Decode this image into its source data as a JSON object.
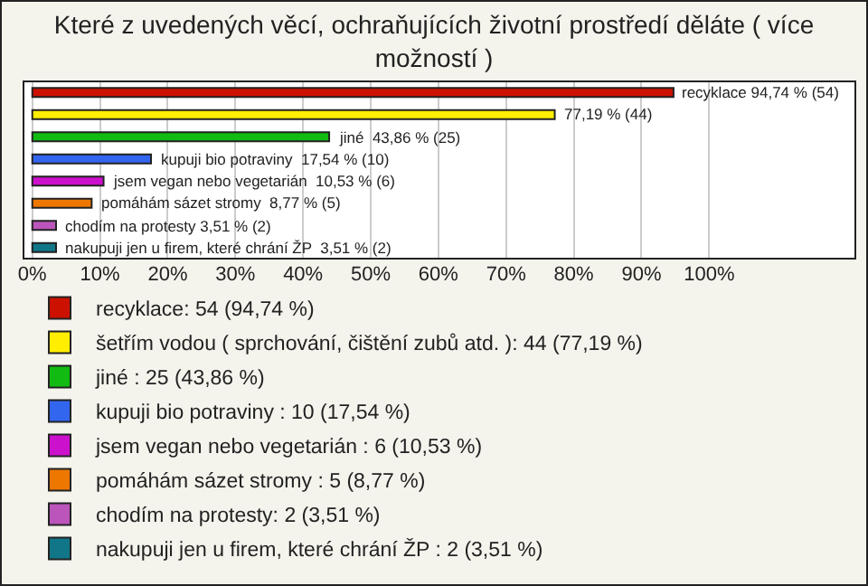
{
  "chart_data": {
    "type": "bar",
    "orientation": "horizontal",
    "title": "Které z uvedených věcí, ochraňujících životní prostředí děláte ( více možností )",
    "categories": [
      null,
      null,
      null,
      null,
      null,
      null,
      null,
      null
    ],
    "series": [
      {
        "name": "recyklace: 54 (94,74 %)",
        "color": "#cc1100",
        "values": [
          94.74,
          null,
          null,
          null,
          null,
          null,
          null,
          null
        ],
        "value_labels": [
          "recyklace 94,74 % (54)",
          null,
          null,
          null,
          null,
          null,
          null,
          null
        ]
      },
      {
        "name": "šetřím vodou ( sprchování, čištění zubů atd. ): 44 (77,19 %)",
        "color": "#ffee00",
        "values": [
          null,
          77.19,
          null,
          null,
          null,
          null,
          null,
          null
        ],
        "value_labels": [
          null,
          "77,19 % (44)",
          null,
          null,
          null,
          null,
          null,
          null
        ]
      },
      {
        "name": "jiné : 25 (43,86 %)",
        "color": "#11bb11",
        "values": [
          null,
          null,
          43.86,
          null,
          null,
          null,
          null,
          null
        ],
        "value_labels": [
          null,
          null,
          "jiné  43,86 % (25)",
          null,
          null,
          null,
          null,
          null
        ]
      },
      {
        "name": "kupuji bio potraviny : 10 (17,54 %)",
        "color": "#3366ee",
        "values": [
          null,
          null,
          null,
          17.54,
          null,
          null,
          null,
          null
        ],
        "value_labels": [
          null,
          null,
          null,
          "kupuji bio potraviny  17,54 % (10)",
          null,
          null,
          null,
          null
        ]
      },
      {
        "name": "jsem vegan nebo vegetarián : 6 (10,53 %)",
        "color": "#cc11cc",
        "values": [
          null,
          null,
          null,
          null,
          10.53,
          null,
          null,
          null
        ],
        "value_labels": [
          null,
          null,
          null,
          null,
          "jsem vegan nebo vegetarián  10,53 % (6)",
          null,
          null,
          null
        ]
      },
      {
        "name": "pomáhám sázet stromy : 5 (8,77 %)",
        "color": "#ee7700",
        "values": [
          null,
          null,
          null,
          null,
          null,
          8.77,
          null,
          null
        ],
        "value_labels": [
          null,
          null,
          null,
          null,
          null,
          "pomáhám sázet stromy  8,77 % (5)",
          null,
          null
        ]
      },
      {
        "name": "chodím na protesty: 2 (3,51 %)",
        "color": "#bb55bb",
        "values": [
          null,
          null,
          null,
          null,
          null,
          null,
          3.51,
          null
        ],
        "value_labels": [
          null,
          null,
          null,
          null,
          null,
          null,
          "chodím na protesty 3,51 % (2)",
          null
        ]
      },
      {
        "name": "nakupuji jen u firem, které chrání ŽP : 2 (3,51 %)",
        "color": "#117788",
        "values": [
          null,
          null,
          null,
          null,
          null,
          null,
          null,
          3.51
        ],
        "value_labels": [
          null,
          null,
          null,
          null,
          null,
          null,
          null,
          "nakupuji jen u firem, které chrání ŽP  3,51 % (2)"
        ]
      }
    ],
    "xlim": [
      -1.3,
      121.6
    ],
    "xticks": [
      {
        "value": 0,
        "label": "0%"
      },
      {
        "value": 10,
        "label": "10%"
      },
      {
        "value": 20,
        "label": "20%"
      },
      {
        "value": 30,
        "label": "30%"
      },
      {
        "value": 40,
        "label": "40%"
      },
      {
        "value": 50,
        "label": "50%"
      },
      {
        "value": 60,
        "label": "60%"
      },
      {
        "value": 70,
        "label": "70%"
      },
      {
        "value": 80,
        "label": "80%"
      },
      {
        "value": 90,
        "label": "90%"
      },
      {
        "value": 100,
        "label": "100%"
      }
    ],
    "grid": "x",
    "legend": "bottom",
    "tick_labels": "x"
  }
}
